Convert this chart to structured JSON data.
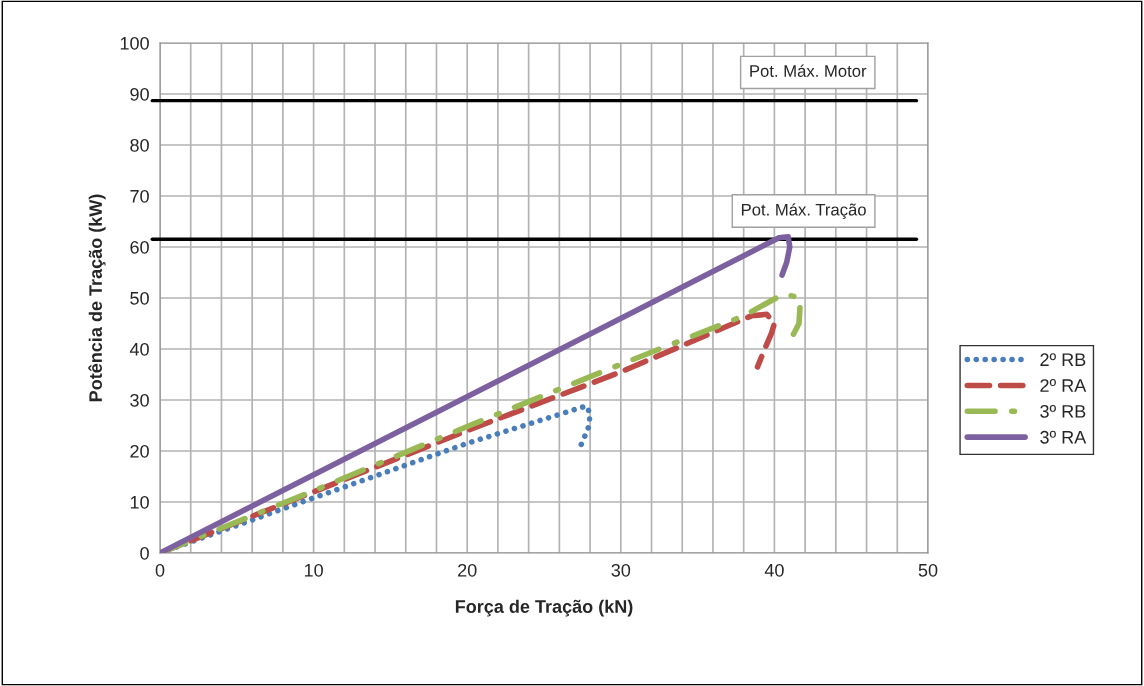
{
  "chart_data": {
    "type": "line",
    "xlabel": "Força de Tração (kN)",
    "ylabel": "Potência de Tração (kW)",
    "xlim": [
      0,
      50
    ],
    "ylim": [
      0,
      100
    ],
    "xticks": [
      0,
      10,
      20,
      30,
      40,
      50
    ],
    "yticks": [
      0,
      10,
      20,
      30,
      40,
      50,
      60,
      70,
      80,
      90,
      100
    ],
    "grid": true,
    "legend": "right",
    "marker": "none",
    "series": [
      {
        "name": "2º RB",
        "color": "#4a7ebb",
        "line_style": "dotted",
        "x": [
          0,
          10,
          20,
          27.5,
          27.8,
          28,
          27.9,
          27.6,
          27.3
        ],
        "values": [
          0,
          10.8,
          21.5,
          28.6,
          28.8,
          27.1,
          24.7,
          22.5,
          20.4
        ]
      },
      {
        "name": "2º RA",
        "color": "#be4b48",
        "line_style": "dashed",
        "x": [
          0,
          10,
          20,
          30,
          38.5,
          39.5,
          40,
          39.8,
          39.3,
          38.9
        ],
        "values": [
          0,
          12,
          24,
          35.5,
          46.5,
          46.8,
          45,
          43,
          39.5,
          36.5
        ]
      },
      {
        "name": "3º RB",
        "color": "#98b954",
        "line_style": "dashdot",
        "x": [
          0,
          10,
          20,
          30,
          38,
          40.6,
          41.7,
          41.6,
          41
        ],
        "values": [
          0,
          12.2,
          24.8,
          37,
          46.5,
          50.8,
          50,
          45,
          41.5
        ]
      },
      {
        "name": "3º RA",
        "color": "#7d60a0",
        "line_style": "solid",
        "x": [
          0,
          40.3,
          40.9,
          41,
          40.8,
          40.5
        ],
        "values": [
          0,
          61.8,
          62,
          60,
          57,
          54.5
        ]
      }
    ],
    "ref_lines": [
      {
        "axis": "y",
        "value": 88.7,
        "label": "Pot. Máx. Motor",
        "color": "#000000"
      },
      {
        "axis": "y",
        "value": 61.5,
        "label": "Pot. Máx. Tração",
        "color": "#000000"
      }
    ]
  }
}
